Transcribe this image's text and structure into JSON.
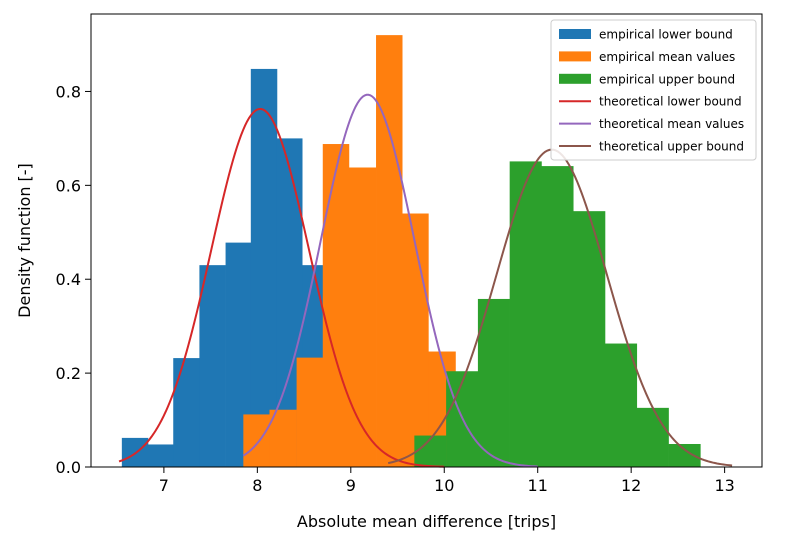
{
  "chart_data": {
    "type": "histogram+line",
    "title": "",
    "xlabel": "Absolute mean difference [trips]",
    "ylabel": "Density function [-]",
    "xlim": [
      6.22,
      13.4
    ],
    "ylim": [
      0,
      0.965
    ],
    "xticks": [
      7,
      8,
      9,
      10,
      11,
      12,
      13
    ],
    "yticks": [
      0.0,
      0.2,
      0.4,
      0.6,
      0.8
    ],
    "ytick_labels": [
      "0.0",
      "0.2",
      "0.4",
      "0.6",
      "0.8"
    ],
    "legend_position": "top-right",
    "histograms": [
      {
        "name": "empirical lower bound",
        "color": "#1f77b4",
        "edges": [
          6.55,
          6.83,
          7.1,
          7.38,
          7.66,
          7.93,
          8.21,
          8.48,
          8.76
        ],
        "densities": [
          0.062,
          0.048,
          0.232,
          0.43,
          0.478,
          0.848,
          0.7,
          0.43
        ]
      },
      {
        "name": "empirical mean values",
        "color": "#ff7f0e",
        "edges": [
          7.85,
          8.13,
          8.42,
          8.7,
          8.98,
          9.27,
          9.55,
          9.83,
          10.12
        ],
        "densities": [
          0.112,
          0.122,
          0.233,
          0.688,
          0.638,
          0.92,
          0.54,
          0.246
        ]
      },
      {
        "name": "empirical upper bound",
        "color": "#2ca02c",
        "edges": [
          9.68,
          10.02,
          10.36,
          10.7,
          11.04,
          11.38,
          11.72,
          12.06,
          12.4,
          12.74
        ],
        "densities": [
          0.067,
          0.204,
          0.358,
          0.651,
          0.641,
          0.545,
          0.263,
          0.126,
          0.049
        ]
      }
    ],
    "curves": [
      {
        "name": "theoretical lower bound",
        "color": "#d62728",
        "type": "normal",
        "mean": 8.03,
        "sd": 0.523,
        "x_range": [
          6.52,
          10.0
        ]
      },
      {
        "name": "theoretical mean values",
        "color": "#9467bd",
        "type": "normal",
        "mean": 9.18,
        "sd": 0.503,
        "x_range": [
          7.85,
          11.0
        ]
      },
      {
        "name": "theoretical upper bound",
        "color": "#8c564b",
        "type": "normal",
        "mean": 11.15,
        "sd": 0.59,
        "x_range": [
          9.4,
          13.08
        ]
      }
    ],
    "legend": [
      {
        "label": "empirical lower bound",
        "kind": "patch",
        "color": "#1f77b4"
      },
      {
        "label": "empirical mean values",
        "kind": "patch",
        "color": "#ff7f0e"
      },
      {
        "label": "empirical upper bound",
        "kind": "patch",
        "color": "#2ca02c"
      },
      {
        "label": "theoretical lower bound",
        "kind": "line",
        "color": "#d62728"
      },
      {
        "label": "theoretical mean values",
        "kind": "line",
        "color": "#9467bd"
      },
      {
        "label": "theoretical upper bound",
        "kind": "line",
        "color": "#8c564b"
      }
    ]
  }
}
